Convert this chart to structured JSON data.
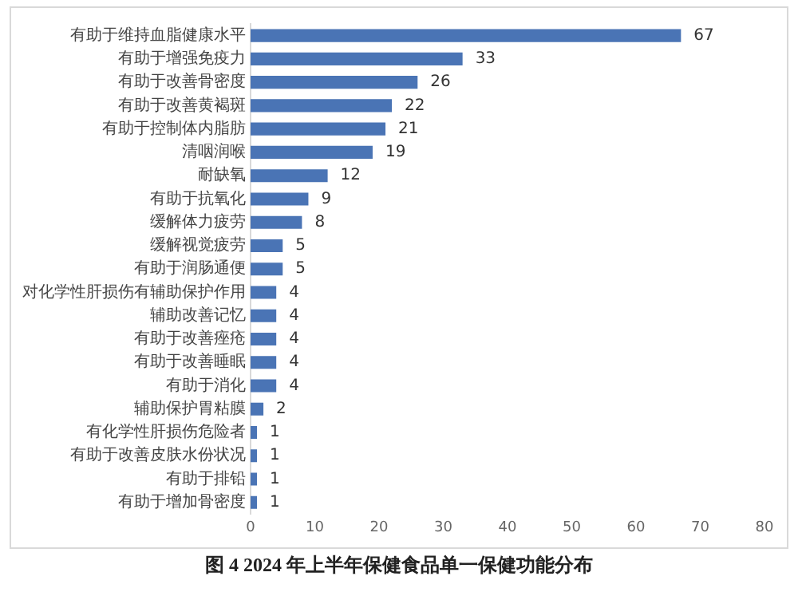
{
  "chart_data": {
    "type": "bar",
    "orientation": "horizontal",
    "title": "图 4 2024 年上半年保健食品单一保健功能分布",
    "categories": [
      "有助于维持血脂健康水平",
      "有助于增强免疫力",
      "有助于改善骨密度",
      "有助于改善黄褐斑",
      "有助于控制体内脂肪",
      "清咽润喉",
      "耐缺氧",
      "有助于抗氧化",
      "缓解体力疲劳",
      "缓解视觉疲劳",
      "有助于润肠通便",
      "对化学性肝损伤有辅助保护作用",
      "辅助改善记忆",
      "有助于改善痤疮",
      "有助于改善睡眠",
      "有助于消化",
      "辅助保护胃粘膜",
      "有化学性肝损伤危险者",
      "有助于改善皮肤水份状况",
      "有助于排铅",
      "有助于增加骨密度"
    ],
    "values": [
      67,
      33,
      26,
      22,
      21,
      19,
      12,
      9,
      8,
      5,
      5,
      4,
      4,
      4,
      4,
      4,
      2,
      1,
      1,
      1,
      1
    ],
    "color": "#4a74b5",
    "data_labels": true,
    "grid": false,
    "legend": false,
    "xlim": [
      0,
      80
    ],
    "xticks": [
      0,
      10,
      20,
      30,
      40,
      50,
      60,
      70,
      80
    ]
  }
}
